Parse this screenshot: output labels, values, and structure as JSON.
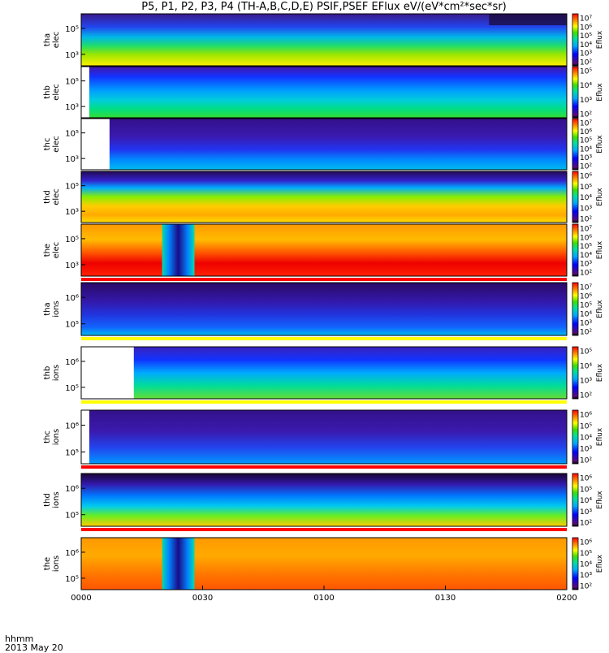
{
  "title": "P5, P1, P2, P3, P4 (TH-A,B,C,D,E) PSIF,PSEF EFlux eV/(eV*cm²*sec*sr)",
  "footer": {
    "time_label": "hhmm",
    "date_label": "2013 May 20"
  },
  "chart_data": {
    "type": "heatmap",
    "x_ticks": [
      "0000",
      "0030",
      "0100",
      "0130",
      "0200"
    ],
    "x_range": [
      "00:00",
      "02:00"
    ],
    "colorbar_label": "Eflux",
    "panels": [
      {
        "id": "tha-elec",
        "ylabel": [
          "tha",
          "elec"
        ],
        "yticks": [
          "10⁵",
          "10³"
        ],
        "cbar_ticks": [
          "10⁷",
          "10⁶",
          "10⁵",
          "10⁴",
          "10³",
          "10²"
        ],
        "data_start": "00:00",
        "hot_high": true
      },
      {
        "id": "thb-elec",
        "ylabel": [
          "thb",
          "elec"
        ],
        "yticks": [
          "10⁵",
          "10³"
        ],
        "cbar_ticks": [
          "10⁵",
          "10⁴",
          "10³",
          "10²"
        ],
        "data_start": "00:02"
      },
      {
        "id": "thc-elec",
        "ylabel": [
          "thc",
          "elec"
        ],
        "yticks": [
          "10⁵",
          "10³"
        ],
        "cbar_ticks": [
          "10⁷",
          "10⁶",
          "10⁵",
          "10⁴",
          "10³",
          "10²"
        ],
        "data_start": "00:07"
      },
      {
        "id": "thd-elec",
        "ylabel": [
          "thd",
          "elec"
        ],
        "yticks": [
          "10⁵",
          "10³"
        ],
        "cbar_ticks": [
          "10⁶",
          "10⁵",
          "10⁴",
          "10³",
          "10²"
        ],
        "data_start": "00:00"
      },
      {
        "id": "the-elec",
        "ylabel": [
          "the",
          "elec"
        ],
        "yticks": [
          "10⁵",
          "10³"
        ],
        "cbar_ticks": [
          "10⁷",
          "10⁶",
          "10⁵",
          "10⁴",
          "10³",
          "10²"
        ],
        "data_start": "00:00",
        "gap_start": "00:20",
        "gap_end": "00:28"
      },
      {
        "id": "tha-ions",
        "ylabel": [
          "tha",
          "ions"
        ],
        "yticks": [
          "10⁶",
          "10⁵"
        ],
        "cbar_ticks": [
          "10⁷",
          "10⁶",
          "10⁵",
          "10⁴",
          "10³",
          "10²"
        ],
        "data_start": "00:00"
      },
      {
        "id": "thb-ions",
        "ylabel": [
          "thb",
          "ions"
        ],
        "yticks": [
          "10⁶",
          "10⁵"
        ],
        "cbar_ticks": [
          "10⁵",
          "10⁴",
          "10³",
          "10²"
        ],
        "data_start": "00:13"
      },
      {
        "id": "thc-ions",
        "ylabel": [
          "thc",
          "ions"
        ],
        "yticks": [
          "10⁶",
          "10⁵"
        ],
        "cbar_ticks": [
          "10⁶",
          "10⁵",
          "10⁴",
          "10³",
          "10²"
        ],
        "data_start": "00:02"
      },
      {
        "id": "thd-ions",
        "ylabel": [
          "thd",
          "ions"
        ],
        "yticks": [
          "10⁶",
          "10⁵"
        ],
        "cbar_ticks": [
          "10⁶",
          "10⁵",
          "10⁴",
          "10³",
          "10²"
        ],
        "data_start": "00:00"
      },
      {
        "id": "the-ions",
        "ylabel": [
          "the",
          "ions"
        ],
        "yticks": [
          "10⁶",
          "10⁵"
        ],
        "cbar_ticks": [
          "10⁶",
          "10⁵",
          "10⁴",
          "10³",
          "10²"
        ],
        "data_start": "00:00",
        "gap_start": "00:20",
        "gap_end": "00:28"
      }
    ]
  }
}
